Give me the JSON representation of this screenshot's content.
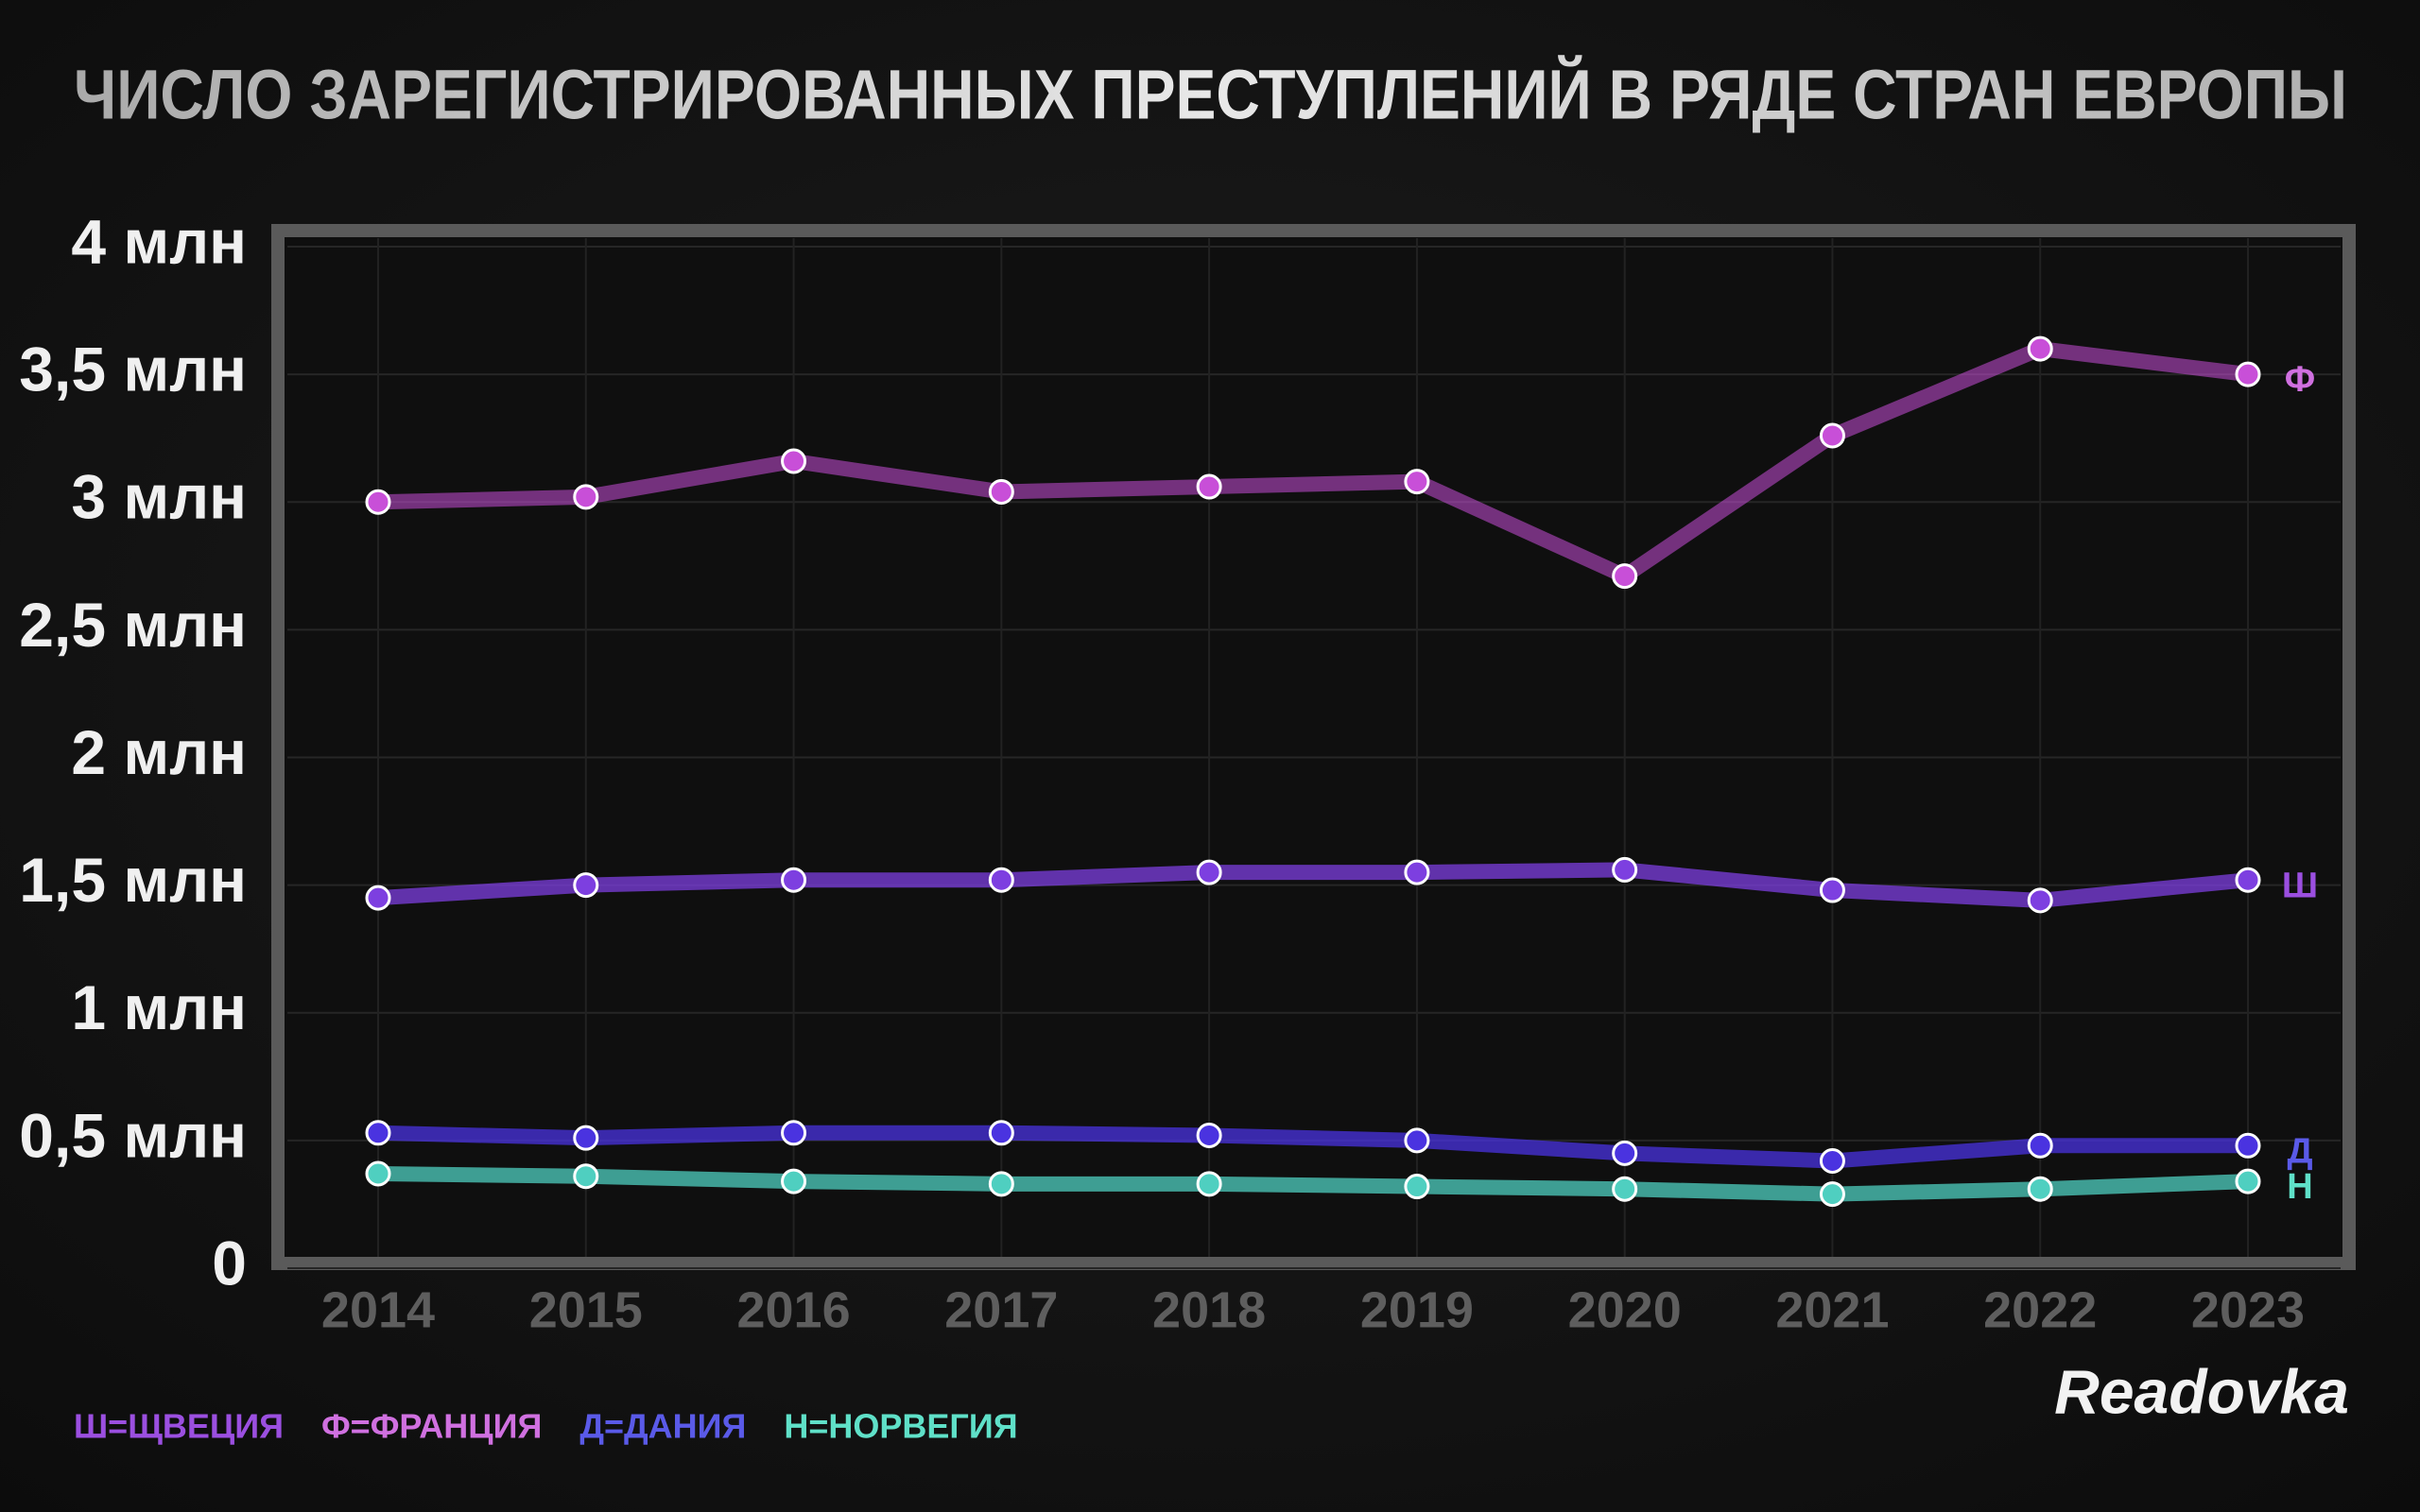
{
  "chart_data": {
    "type": "line",
    "title": "ЧИСЛО ЗАРЕГИСТРИРОВАННЫХ ПРЕСТУПЛЕНИЙ В РЯДЕ СТРАН ЕВРОПЫ",
    "categories": [
      "2014",
      "2015",
      "2016",
      "2017",
      "2018",
      "2019",
      "2020",
      "2021",
      "2022",
      "2023"
    ],
    "series": [
      {
        "name": "Ш=ЩВЕЦИЯ",
        "label": "Ш",
        "color": "#7d3fe0",
        "legend_color": "#9b4fe0",
        "values": [
          1.45,
          1.5,
          1.52,
          1.52,
          1.55,
          1.55,
          1.56,
          1.48,
          1.44,
          1.52
        ]
      },
      {
        "name": "Ф=ФРАНЦИЯ",
        "label": "Ф",
        "color": "#c84fd8",
        "legend_color": "#d070e0",
        "values": [
          3.0,
          3.02,
          3.16,
          3.04,
          3.06,
          3.08,
          2.71,
          3.26,
          3.6,
          3.5
        ]
      },
      {
        "name": "Д=ДАНИЯ",
        "label": "Д",
        "color": "#4a33e0",
        "legend_color": "#5a5ae8",
        "values": [
          0.53,
          0.51,
          0.53,
          0.53,
          0.52,
          0.5,
          0.45,
          0.42,
          0.48,
          0.48
        ]
      },
      {
        "name": "Н=НОРВЕГИЯ",
        "label": "Н",
        "color": "#4fcfc0",
        "legend_color": "#5fe0c8",
        "values": [
          0.37,
          0.36,
          0.34,
          0.33,
          0.33,
          0.32,
          0.31,
          0.29,
          0.31,
          0.34
        ]
      }
    ],
    "ylim": [
      0,
      4
    ],
    "yticks": [
      0,
      {
        "value": 0.5,
        "label": "0,5 млн"
      },
      {
        "value": 1,
        "label": "1 млн"
      },
      {
        "value": 1.5,
        "label": "1,5 млн"
      },
      {
        "value": 2,
        "label": "2 млн"
      },
      {
        "value": 2.5,
        "label": "2,5 млн"
      },
      {
        "value": 3,
        "label": "3 млн"
      },
      {
        "value": 3.5,
        "label": "3,5 млн"
      },
      {
        "value": 4,
        "label": "4 млн"
      }
    ],
    "grid": true,
    "source": "Readovka"
  }
}
